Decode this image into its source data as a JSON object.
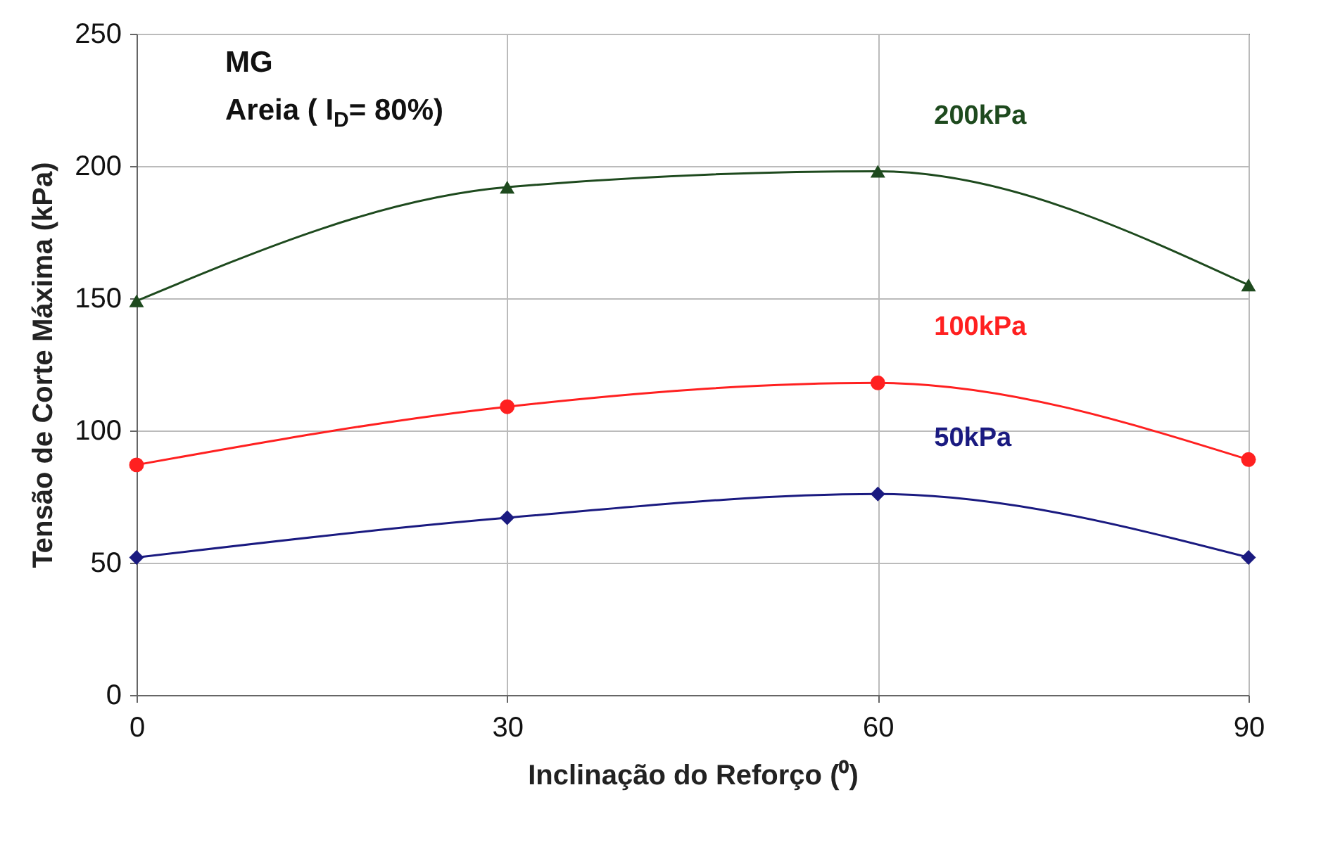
{
  "chart_data": {
    "type": "line",
    "xlabel": "Inclinação do Reforço (⁰)",
    "ylabel": "Tensão de Corte Máxima (kPa)",
    "x": [
      0,
      30,
      60,
      90
    ],
    "series": [
      {
        "name": "200kPa",
        "color": "#1e4a1e",
        "marker": "triangle",
        "values": [
          149,
          192,
          198,
          155
        ]
      },
      {
        "name": "100kPa",
        "color": "#ff2020",
        "marker": "circle",
        "values": [
          87,
          109,
          118,
          89
        ]
      },
      {
        "name": "50kPa",
        "color": "#1a1a80",
        "marker": "diamond",
        "values": [
          52,
          67,
          76,
          52
        ]
      }
    ],
    "xlim": [
      0,
      90
    ],
    "xticks": [
      0,
      30,
      60,
      90
    ],
    "ylim": [
      0,
      250
    ],
    "yticks": [
      0,
      50,
      100,
      150,
      200,
      250
    ],
    "grid": true,
    "annotations": [
      "MG",
      "Areia ( I$_{D}$= 80%)"
    ]
  }
}
